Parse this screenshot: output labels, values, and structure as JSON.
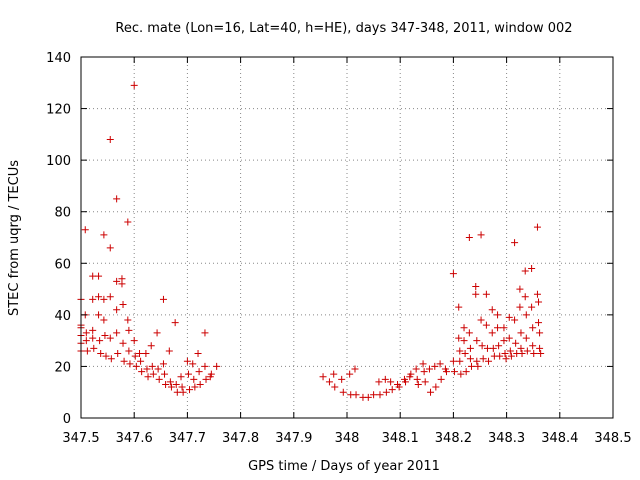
{
  "chart_data": {
    "type": "scatter",
    "title": "Rec. mate (Lon=16, Lat=40, h=HE), days 347-348, 2011, window 002",
    "xlabel": "GPS time / Days of year 2011",
    "ylabel": "STEC from uqrg / TECUs",
    "xlim": [
      347.5,
      348.5
    ],
    "ylim": [
      0,
      140
    ],
    "xticks": [
      "347.5",
      "347.6",
      "347.7",
      "347.8",
      "347.9",
      "348",
      "348.1",
      "348.2",
      "348.3",
      "348.4",
      "348.5"
    ],
    "yticks": [
      "0",
      "20",
      "40",
      "60",
      "80",
      "100",
      "120",
      "140"
    ],
    "grid": true,
    "marker": "+",
    "marker_color": "#cc0000",
    "series": [
      {
        "name": "",
        "points": [
          [
            347.5,
            46
          ],
          [
            347.5,
            36
          ],
          [
            347.5,
            35
          ],
          [
            347.5,
            32
          ],
          [
            347.5,
            29
          ],
          [
            347.5,
            26
          ],
          [
            347.508,
            73
          ],
          [
            347.508,
            40
          ],
          [
            347.51,
            33
          ],
          [
            347.51,
            30
          ],
          [
            347.512,
            26
          ],
          [
            347.522,
            55
          ],
          [
            347.522,
            46
          ],
          [
            347.522,
            34
          ],
          [
            347.522,
            31
          ],
          [
            347.524,
            27
          ],
          [
            347.533,
            55
          ],
          [
            347.533,
            47
          ],
          [
            347.533,
            40
          ],
          [
            347.535,
            30
          ],
          [
            347.537,
            25
          ],
          [
            347.543,
            71
          ],
          [
            347.543,
            46
          ],
          [
            347.543,
            38
          ],
          [
            347.545,
            32
          ],
          [
            347.547,
            24
          ],
          [
            347.555,
            108
          ],
          [
            347.555,
            66
          ],
          [
            347.555,
            47
          ],
          [
            347.555,
            31
          ],
          [
            347.557,
            23
          ],
          [
            347.567,
            85
          ],
          [
            347.567,
            53
          ],
          [
            347.567,
            42
          ],
          [
            347.567,
            33
          ],
          [
            347.569,
            25
          ],
          [
            347.577,
            54
          ],
          [
            347.577,
            52
          ],
          [
            347.579,
            44
          ],
          [
            347.579,
            29
          ],
          [
            347.581,
            22
          ],
          [
            347.588,
            76
          ],
          [
            347.588,
            38
          ],
          [
            347.59,
            34
          ],
          [
            347.59,
            26
          ],
          [
            347.592,
            21
          ],
          [
            347.6,
            129
          ],
          [
            347.6,
            30
          ],
          [
            347.602,
            24
          ],
          [
            347.604,
            20
          ],
          [
            347.61,
            25
          ],
          [
            347.612,
            22
          ],
          [
            347.614,
            18
          ],
          [
            347.622,
            25
          ],
          [
            347.624,
            19
          ],
          [
            347.626,
            16
          ],
          [
            347.632,
            28
          ],
          [
            347.634,
            20
          ],
          [
            347.636,
            17
          ],
          [
            347.643,
            33
          ],
          [
            347.645,
            19
          ],
          [
            347.647,
            15
          ],
          [
            347.655,
            46
          ],
          [
            347.655,
            21
          ],
          [
            347.657,
            17
          ],
          [
            347.659,
            13
          ],
          [
            347.666,
            26
          ],
          [
            347.668,
            14
          ],
          [
            347.67,
            12
          ],
          [
            347.677,
            37
          ],
          [
            347.679,
            13
          ],
          [
            347.681,
            10
          ],
          [
            347.688,
            16
          ],
          [
            347.69,
            12
          ],
          [
            347.692,
            10
          ],
          [
            347.7,
            22
          ],
          [
            347.702,
            17
          ],
          [
            347.704,
            11
          ],
          [
            347.71,
            21
          ],
          [
            347.712,
            15
          ],
          [
            347.714,
            12
          ],
          [
            347.72,
            25
          ],
          [
            347.722,
            18
          ],
          [
            347.724,
            13
          ],
          [
            347.733,
            33
          ],
          [
            347.733,
            20
          ],
          [
            347.735,
            15
          ],
          [
            347.743,
            16
          ],
          [
            347.745,
            17
          ],
          [
            347.755,
            20
          ],
          [
            347.955,
            16
          ],
          [
            347.967,
            14
          ],
          [
            347.975,
            17
          ],
          [
            347.977,
            12
          ],
          [
            347.99,
            15
          ],
          [
            347.993,
            10
          ],
          [
            348.005,
            17
          ],
          [
            348.007,
            9
          ],
          [
            348.015,
            19
          ],
          [
            348.017,
            9
          ],
          [
            348.03,
            8
          ],
          [
            348.04,
            8
          ],
          [
            348.05,
            9
          ],
          [
            348.06,
            14
          ],
          [
            348.062,
            9
          ],
          [
            348.072,
            15
          ],
          [
            348.074,
            10
          ],
          [
            348.082,
            14
          ],
          [
            348.085,
            11
          ],
          [
            348.095,
            13
          ],
          [
            348.098,
            12
          ],
          [
            348.108,
            15
          ],
          [
            348.11,
            14
          ],
          [
            348.118,
            16
          ],
          [
            348.12,
            17
          ],
          [
            348.13,
            19
          ],
          [
            348.132,
            15
          ],
          [
            348.134,
            13
          ],
          [
            348.143,
            21
          ],
          [
            348.145,
            18
          ],
          [
            348.147,
            14
          ],
          [
            348.155,
            19
          ],
          [
            348.157,
            10
          ],
          [
            348.165,
            20
          ],
          [
            348.167,
            12
          ],
          [
            348.175,
            21
          ],
          [
            348.177,
            15
          ],
          [
            348.185,
            19
          ],
          [
            348.187,
            18
          ],
          [
            348.2,
            56
          ],
          [
            348.2,
            22
          ],
          [
            348.202,
            18
          ],
          [
            348.21,
            43
          ],
          [
            348.21,
            31
          ],
          [
            348.212,
            26
          ],
          [
            348.212,
            22
          ],
          [
            348.214,
            17
          ],
          [
            348.22,
            35
          ],
          [
            348.22,
            30
          ],
          [
            348.222,
            25
          ],
          [
            348.224,
            18
          ],
          [
            348.23,
            70
          ],
          [
            348.23,
            33
          ],
          [
            348.232,
            27
          ],
          [
            348.232,
            23
          ],
          [
            348.234,
            20
          ],
          [
            348.242,
            51
          ],
          [
            348.242,
            48
          ],
          [
            348.244,
            30
          ],
          [
            348.244,
            22
          ],
          [
            348.246,
            20
          ],
          [
            348.252,
            71
          ],
          [
            348.252,
            38
          ],
          [
            348.254,
            28
          ],
          [
            348.256,
            23
          ],
          [
            348.262,
            48
          ],
          [
            348.262,
            36
          ],
          [
            348.264,
            27
          ],
          [
            348.266,
            22
          ],
          [
            348.273,
            42
          ],
          [
            348.273,
            33
          ],
          [
            348.275,
            27
          ],
          [
            348.277,
            24
          ],
          [
            348.283,
            40
          ],
          [
            348.283,
            35
          ],
          [
            348.285,
            28
          ],
          [
            348.287,
            24
          ],
          [
            348.295,
            35
          ],
          [
            348.295,
            30
          ],
          [
            348.297,
            25
          ],
          [
            348.299,
            23
          ],
          [
            348.305,
            39
          ],
          [
            348.305,
            31
          ],
          [
            348.307,
            26
          ],
          [
            348.309,
            24
          ],
          [
            348.315,
            68
          ],
          [
            348.315,
            38
          ],
          [
            348.317,
            29
          ],
          [
            348.319,
            25
          ],
          [
            348.325,
            50
          ],
          [
            348.325,
            43
          ],
          [
            348.327,
            33
          ],
          [
            348.327,
            27
          ],
          [
            348.329,
            25
          ],
          [
            348.335,
            57
          ],
          [
            348.335,
            47
          ],
          [
            348.337,
            40
          ],
          [
            348.337,
            31
          ],
          [
            348.339,
            26
          ],
          [
            348.347,
            58
          ],
          [
            348.347,
            43
          ],
          [
            348.349,
            35
          ],
          [
            348.349,
            28
          ],
          [
            348.351,
            25
          ],
          [
            348.358,
            74
          ],
          [
            348.358,
            48
          ],
          [
            348.36,
            45
          ],
          [
            348.36,
            37
          ],
          [
            348.362,
            33
          ],
          [
            348.362,
            27
          ],
          [
            348.364,
            25
          ]
        ]
      }
    ]
  }
}
